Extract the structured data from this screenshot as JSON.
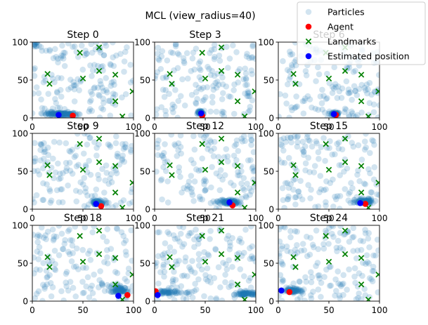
{
  "figure": {
    "title": "MCL (view_radius=40)"
  },
  "legend": {
    "placement": "top-right",
    "entries": [
      {
        "label": "Particles",
        "marker": "circle",
        "color": "#1f77b4",
        "alpha": 0.2
      },
      {
        "label": "Agent",
        "marker": "circle",
        "color": "#ff0000"
      },
      {
        "label": "Landmarks",
        "marker": "x",
        "color": "#008000"
      },
      {
        "label": "Estimated position",
        "marker": "circle",
        "color": "#0000ff"
      }
    ]
  },
  "colors": {
    "particles": "#1f77b4",
    "agent": "#ff0000",
    "landmarks": "#008000",
    "estimate": "#0000ff"
  },
  "chart_data": {
    "type": "scatter",
    "grid": false,
    "xlim": [
      0,
      100
    ],
    "ylim": [
      0,
      100
    ],
    "xticks": [
      "0",
      "50",
      "100"
    ],
    "yticks": [
      "0",
      "50",
      "100"
    ],
    "landmarks": [
      [
        15,
        58
      ],
      [
        17,
        45
      ],
      [
        47,
        86
      ],
      [
        50,
        52
      ],
      [
        66,
        93
      ],
      [
        66,
        62
      ],
      [
        82,
        22
      ],
      [
        82,
        57
      ],
      [
        89,
        2
      ],
      [
        99,
        35
      ]
    ],
    "subplots": [
      {
        "title": "Step 0",
        "agent": [
          40,
          3
        ],
        "estimate": [
          26,
          4
        ],
        "cluster": {
          "center": [
            28,
            4
          ],
          "spread": [
            14,
            3
          ],
          "count": 120
        },
        "clusters": [
          {
            "center": [
              3,
              97
            ],
            "spread": [
              3,
              3
            ],
            "count": 12
          }
        ],
        "scatter_count": 150
      },
      {
        "title": "Step 3",
        "agent": [
          47,
          3
        ],
        "estimate": [
          46,
          6
        ],
        "cluster": {
          "center": [
            45,
            5
          ],
          "spread": [
            3,
            3
          ],
          "count": 40
        },
        "clusters": [],
        "scatter_count": 150
      },
      {
        "title": "Step 6",
        "agent": [
          57,
          4
        ],
        "estimate": [
          55,
          5
        ],
        "cluster": {
          "center": [
            56,
            4
          ],
          "spread": [
            4,
            3
          ],
          "count": 50
        },
        "clusters": [],
        "scatter_count": 150
      },
      {
        "title": "Step 9",
        "agent": [
          68,
          4
        ],
        "estimate": [
          63,
          7
        ],
        "cluster": {
          "center": [
            64,
            6
          ],
          "spread": [
            6,
            5
          ],
          "count": 70
        },
        "clusters": [],
        "scatter_count": 140
      },
      {
        "title": "Step 12",
        "agent": [
          77,
          5
        ],
        "estimate": [
          74,
          9
        ],
        "cluster": {
          "center": [
            74,
            7
          ],
          "spread": [
            8,
            5
          ],
          "count": 90
        },
        "clusters": [],
        "scatter_count": 140
      },
      {
        "title": "Step 15",
        "agent": [
          86,
          7
        ],
        "estimate": [
          81,
          8
        ],
        "cluster": {
          "center": [
            85,
            8
          ],
          "spread": [
            8,
            5
          ],
          "count": 90
        },
        "clusters": [],
        "scatter_count": 140
      },
      {
        "title": "Step 18",
        "agent": [
          94,
          8
        ],
        "estimate": [
          85,
          7
        ],
        "cluster": {
          "center": [
            86,
            12
          ],
          "spread": [
            8,
            6
          ],
          "count": 80
        },
        "clusters": [],
        "scatter_count": 140
      },
      {
        "title": "Step 21",
        "agent": [
          1,
          13
        ],
        "estimate": [
          3,
          8
        ],
        "cluster": {
          "center": [
            90,
            8
          ],
          "spread": [
            8,
            4
          ],
          "count": 70
        },
        "clusters": [
          {
            "center": [
              14,
              10
            ],
            "spread": [
              12,
              5
            ],
            "count": 50
          }
        ],
        "scatter_count": 150
      },
      {
        "title": "Step 24",
        "agent": [
          11,
          12
        ],
        "estimate": [
          3,
          14
        ],
        "cluster": {
          "center": [
            14,
            12
          ],
          "spread": [
            7,
            4
          ],
          "count": 60
        },
        "clusters": [],
        "scatter_count": 160
      }
    ]
  }
}
